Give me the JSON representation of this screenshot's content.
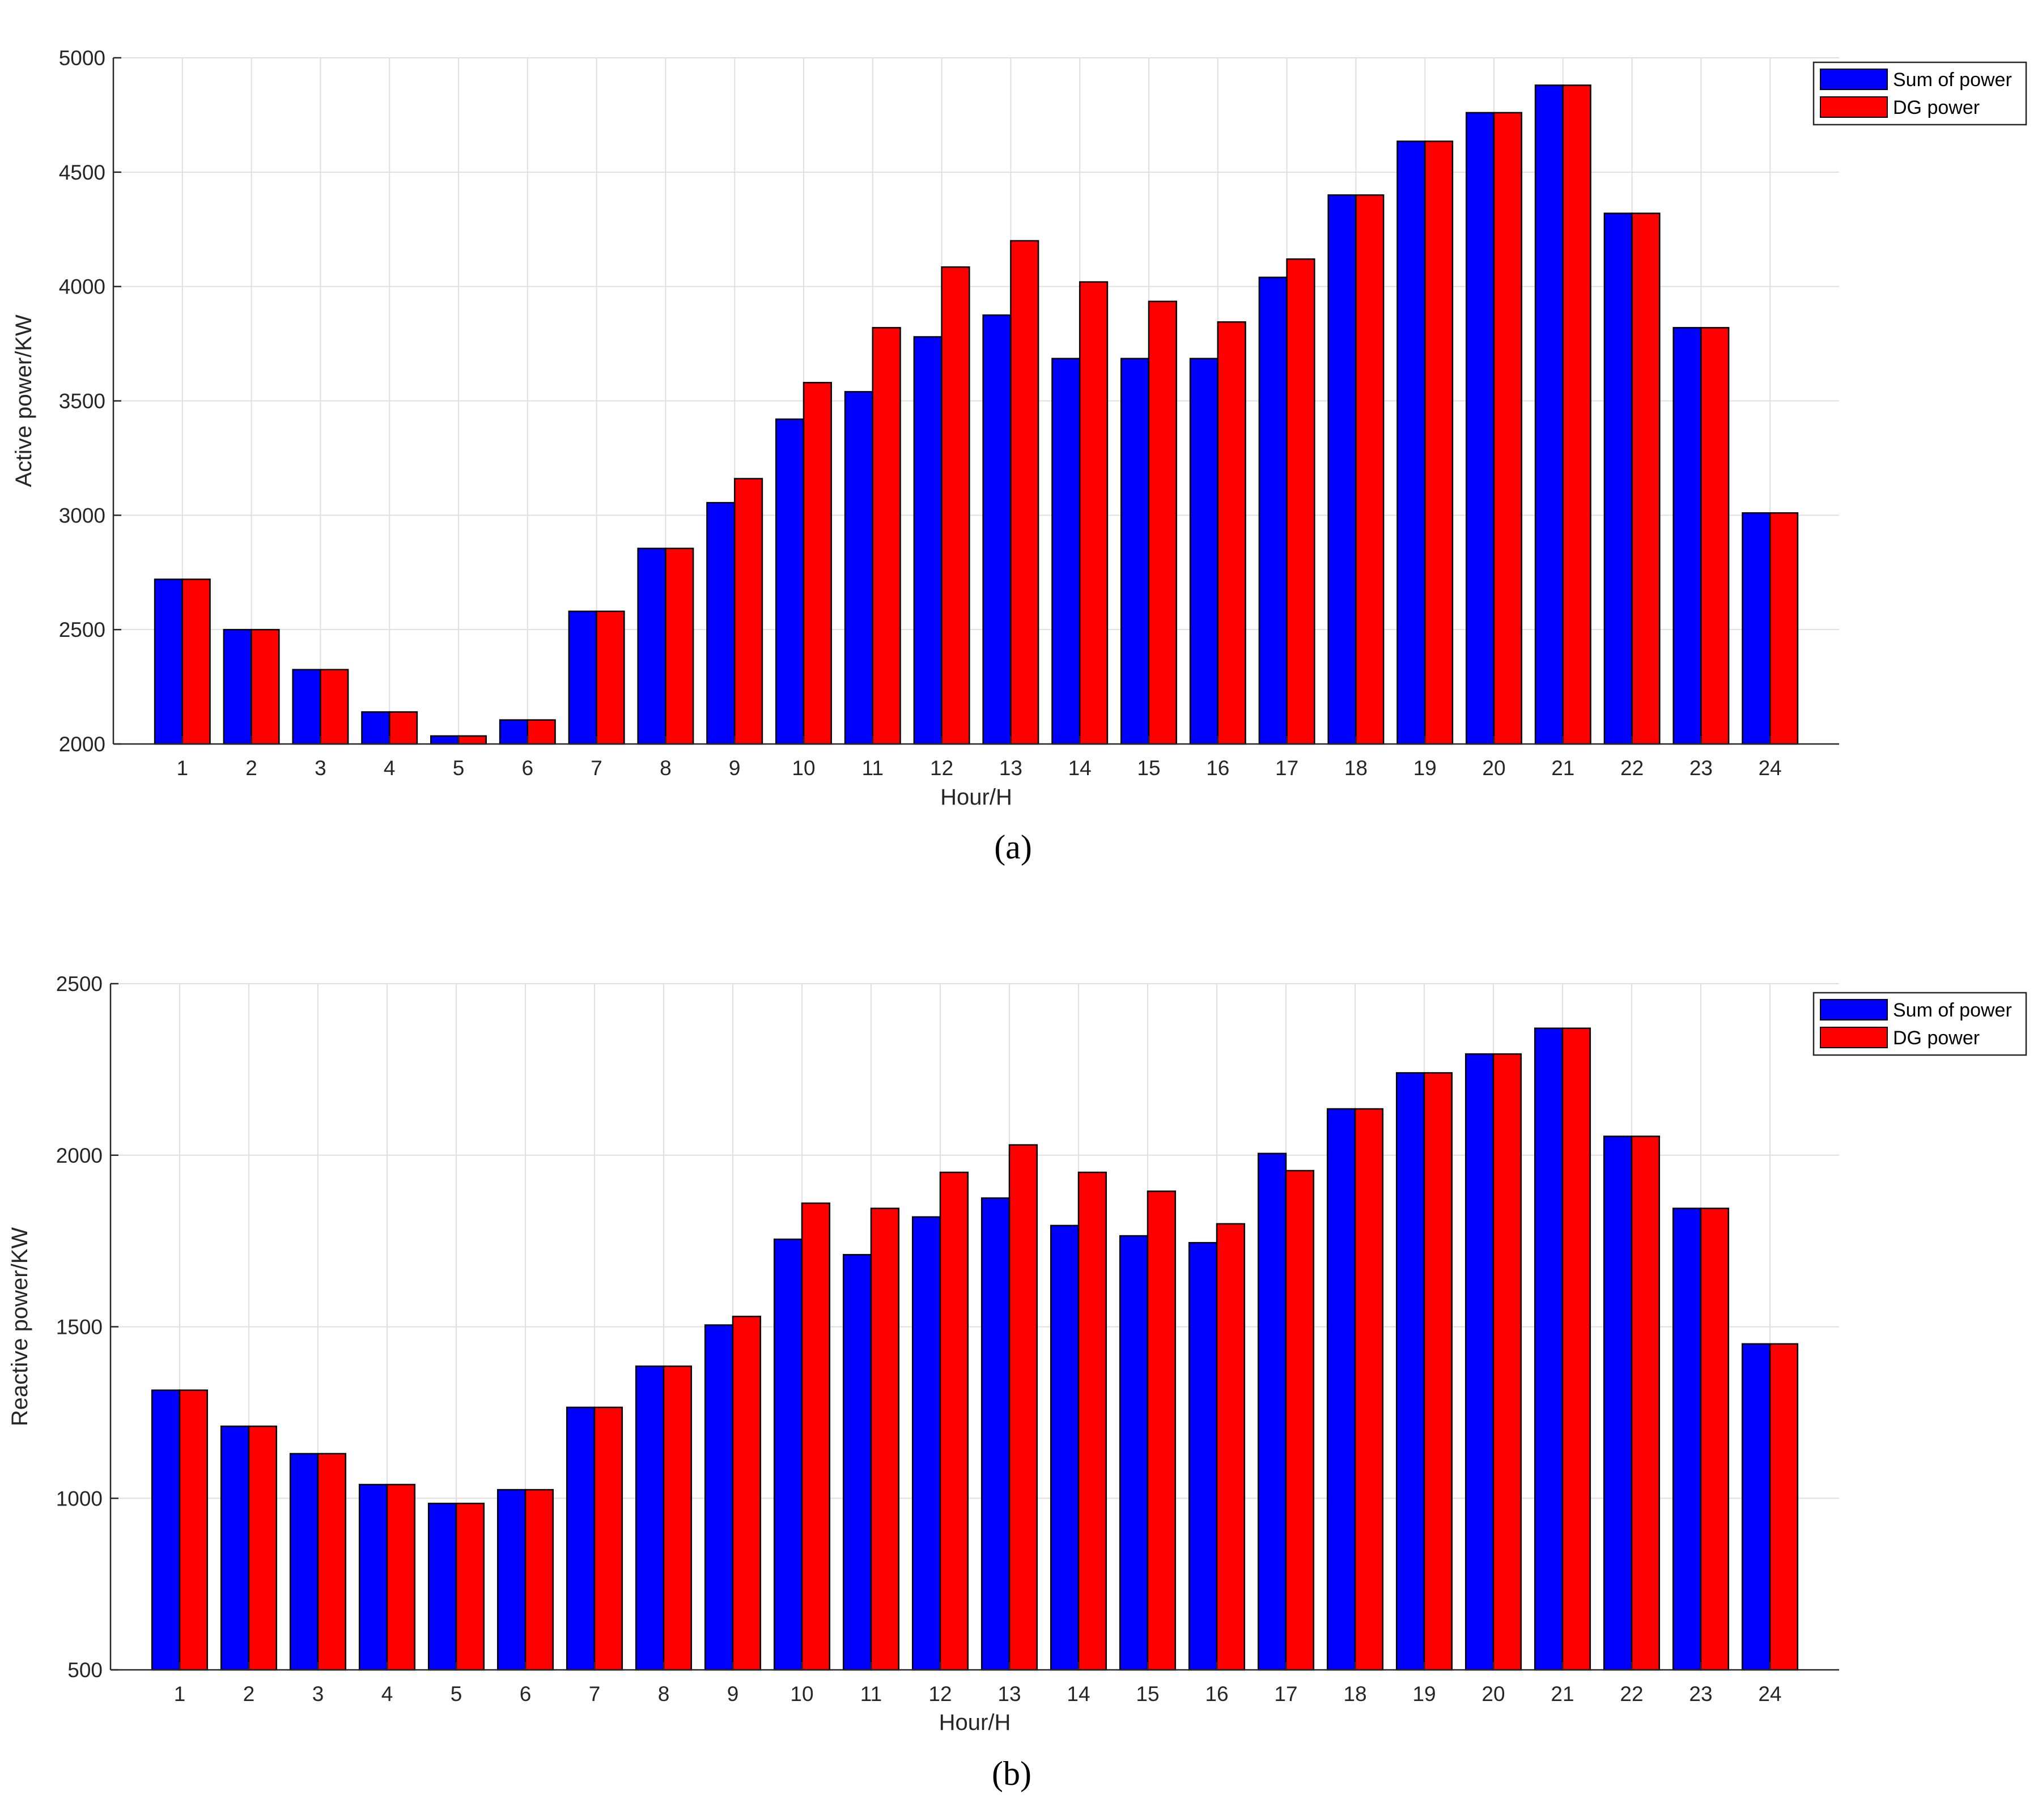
{
  "legend": {
    "series_names": [
      "Sum of power",
      "DG power"
    ]
  },
  "chart_data": [
    {
      "type": "bar",
      "panel_label": "(a)",
      "xlabel": "Hour/H",
      "ylabel": "Active power/KW",
      "ylim": [
        2000,
        5000
      ],
      "yticks": [
        2000,
        2500,
        3000,
        3500,
        4000,
        4500,
        5000
      ],
      "grid": true,
      "legend_position": "top-right",
      "categories": [
        "1",
        "2",
        "3",
        "4",
        "5",
        "6",
        "7",
        "8",
        "9",
        "10",
        "11",
        "12",
        "13",
        "14",
        "15",
        "16",
        "17",
        "18",
        "19",
        "20",
        "21",
        "22",
        "23",
        "24"
      ],
      "series": [
        {
          "name": "Sum of power",
          "color": "#0000ff",
          "values": [
            2720,
            2500,
            2325,
            2140,
            2035,
            2105,
            2580,
            2855,
            3055,
            3420,
            3540,
            3780,
            3875,
            3685,
            3685,
            3685,
            4040,
            4400,
            4635,
            4760,
            4880,
            4320,
            3820,
            3010
          ]
        },
        {
          "name": "DG power",
          "color": "#ff0000",
          "values": [
            2720,
            2500,
            2325,
            2140,
            2035,
            2105,
            2580,
            2855,
            3160,
            3580,
            3820,
            4085,
            4200,
            4020,
            3935,
            3845,
            4120,
            4400,
            4635,
            4760,
            4880,
            4320,
            3820,
            3010
          ]
        }
      ]
    },
    {
      "type": "bar",
      "panel_label": "(b)",
      "xlabel": "Hour/H",
      "ylabel": "Reactive power/KW",
      "ylim": [
        500,
        2500
      ],
      "yticks": [
        500,
        1000,
        1500,
        2000,
        2500
      ],
      "grid": true,
      "legend_position": "top-right",
      "categories": [
        "1",
        "2",
        "3",
        "4",
        "5",
        "6",
        "7",
        "8",
        "9",
        "10",
        "11",
        "12",
        "13",
        "14",
        "15",
        "16",
        "17",
        "18",
        "19",
        "20",
        "21",
        "22",
        "23",
        "24"
      ],
      "series": [
        {
          "name": "Sum of power",
          "color": "#0000ff",
          "values": [
            1315,
            1210,
            1130,
            1040,
            985,
            1025,
            1265,
            1385,
            1505,
            1755,
            1710,
            1820,
            1875,
            1795,
            1765,
            1745,
            2005,
            2135,
            2240,
            2295,
            2370,
            2055,
            1845,
            1450
          ]
        },
        {
          "name": "DG power",
          "color": "#ff0000",
          "values": [
            1315,
            1210,
            1130,
            1040,
            985,
            1025,
            1265,
            1385,
            1530,
            1860,
            1845,
            1950,
            2030,
            1950,
            1895,
            1800,
            1955,
            2135,
            2240,
            2295,
            2370,
            2055,
            1845,
            1450
          ]
        }
      ]
    }
  ]
}
